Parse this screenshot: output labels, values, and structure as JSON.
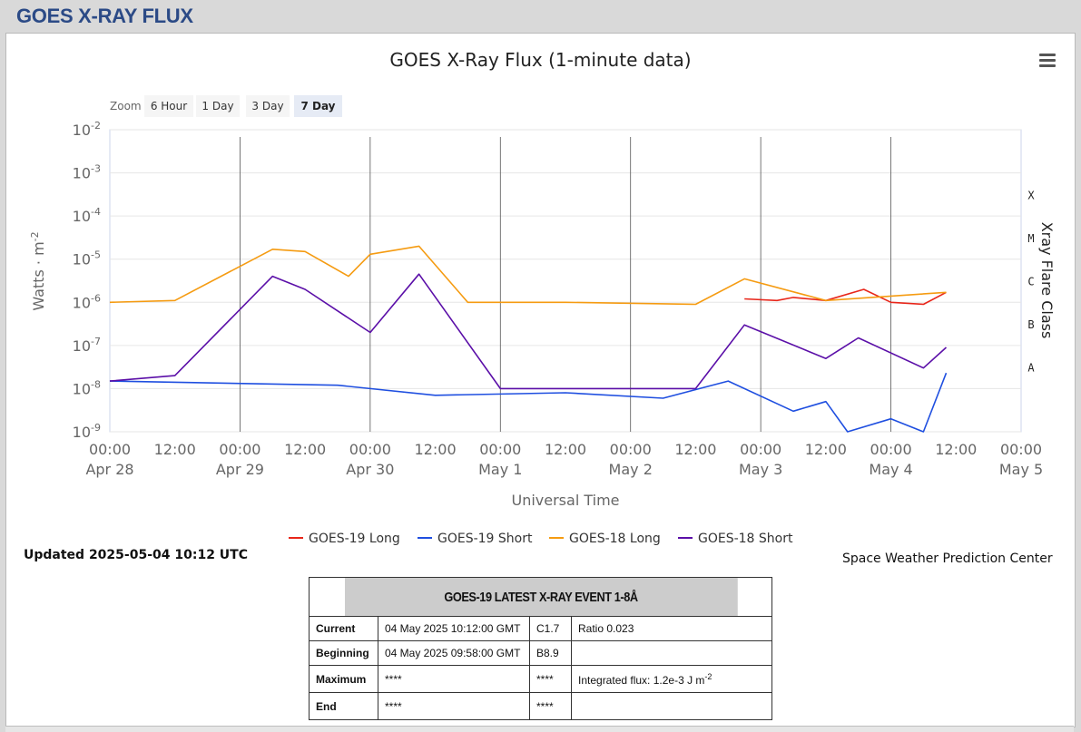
{
  "page": {
    "title": "GOES X-RAY FLUX"
  },
  "chart_data": {
    "type": "line",
    "title": "GOES X-Ray Flux (1-minute data)",
    "xlabel": "Universal Time",
    "ylabel": "Watts · m",
    "ylabel_sup": "-2",
    "y2label": "Xray Flare Class",
    "yscale": "log",
    "ylim": [
      1e-09,
      0.01
    ],
    "y_ticks": [
      {
        "base": "10",
        "exp": "-2"
      },
      {
        "base": "10",
        "exp": "-3"
      },
      {
        "base": "10",
        "exp": "-4"
      },
      {
        "base": "10",
        "exp": "-5"
      },
      {
        "base": "10",
        "exp": "-6"
      },
      {
        "base": "10",
        "exp": "-7"
      },
      {
        "base": "10",
        "exp": "-8"
      },
      {
        "base": "10",
        "exp": "-9"
      }
    ],
    "flare_classes": [
      {
        "label": "X",
        "value": 0.0001
      },
      {
        "label": "M",
        "value": 1e-05
      },
      {
        "label": "C",
        "value": 1e-06
      },
      {
        "label": "B",
        "value": 1e-07
      },
      {
        "label": "A",
        "value": 1e-08
      }
    ],
    "xlim": [
      "2025-04-28 00:00",
      "2025-05-05 00:00"
    ],
    "x_ticks": [
      {
        "time": "00:00",
        "date": "Apr 28"
      },
      {
        "time": "12:00",
        "date": ""
      },
      {
        "time": "00:00",
        "date": "Apr 29"
      },
      {
        "time": "12:00",
        "date": ""
      },
      {
        "time": "00:00",
        "date": "Apr 30"
      },
      {
        "time": "12:00",
        "date": ""
      },
      {
        "time": "00:00",
        "date": "May 1"
      },
      {
        "time": "12:00",
        "date": ""
      },
      {
        "time": "00:00",
        "date": "May 2"
      },
      {
        "time": "12:00",
        "date": ""
      },
      {
        "time": "00:00",
        "date": "May 3"
      },
      {
        "time": "12:00",
        "date": ""
      },
      {
        "time": "00:00",
        "date": "May 4"
      },
      {
        "time": "12:00",
        "date": ""
      },
      {
        "time": "00:00",
        "date": "May 5"
      }
    ],
    "series": [
      {
        "name": "GOES-19 Long",
        "color": "#e8261a",
        "points": [
          [
            "2025-05-02 21:00",
            1.2e-06
          ],
          [
            "2025-05-03 03:00",
            1.1e-06
          ],
          [
            "2025-05-03 06:00",
            1.3e-06
          ],
          [
            "2025-05-03 12:00",
            1.1e-06
          ],
          [
            "2025-05-03 19:00",
            2e-06
          ],
          [
            "2025-05-04 00:00",
            1e-06
          ],
          [
            "2025-05-04 06:00",
            9e-07
          ],
          [
            "2025-05-04 10:12",
            1.7e-06
          ]
        ]
      },
      {
        "name": "GOES-19 Short",
        "color": "#1f4fe0",
        "points": [
          [
            "2025-04-28 00:00",
            1.5e-08
          ],
          [
            "2025-04-29 18:00",
            1.2e-08
          ],
          [
            "2025-04-30 12:00",
            7e-09
          ],
          [
            "2025-05-01 12:00",
            8e-09
          ],
          [
            "2025-05-02 06:00",
            6e-09
          ],
          [
            "2025-05-02 18:00",
            1.5e-08
          ],
          [
            "2025-05-03 06:00",
            3e-09
          ],
          [
            "2025-05-03 12:00",
            5e-09
          ],
          [
            "2025-05-03 16:00",
            1e-09
          ],
          [
            "2025-05-04 00:00",
            2e-09
          ],
          [
            "2025-05-04 06:00",
            1e-09
          ],
          [
            "2025-05-04 10:12",
            2.3e-08
          ]
        ]
      },
      {
        "name": "GOES-18 Long",
        "color": "#f59b11",
        "points": [
          [
            "2025-04-28 00:00",
            1e-06
          ],
          [
            "2025-04-28 12:00",
            1.1e-06
          ],
          [
            "2025-04-29 06:00",
            1.7e-05
          ],
          [
            "2025-04-29 12:00",
            1.5e-05
          ],
          [
            "2025-04-29 20:00",
            4e-06
          ],
          [
            "2025-04-30 00:00",
            1.3e-05
          ],
          [
            "2025-04-30 09:00",
            2e-05
          ],
          [
            "2025-04-30 18:00",
            1e-06
          ],
          [
            "2025-05-01 12:00",
            1e-06
          ],
          [
            "2025-05-02 12:00",
            9e-07
          ],
          [
            "2025-05-02 21:00",
            3.5e-06
          ],
          [
            "2025-05-03 12:00",
            1.1e-06
          ],
          [
            "2025-05-04 10:12",
            1.7e-06
          ]
        ]
      },
      {
        "name": "GOES-18 Short",
        "color": "#5b0fa8",
        "points": [
          [
            "2025-04-28 00:00",
            1.5e-08
          ],
          [
            "2025-04-28 12:00",
            2e-08
          ],
          [
            "2025-04-29 06:00",
            4e-06
          ],
          [
            "2025-04-29 12:00",
            2e-06
          ],
          [
            "2025-04-30 00:00",
            2e-07
          ],
          [
            "2025-04-30 09:00",
            4.5e-06
          ],
          [
            "2025-05-01 00:00",
            1e-08
          ],
          [
            "2025-05-02 12:00",
            1e-08
          ],
          [
            "2025-05-02 21:00",
            3e-07
          ],
          [
            "2025-05-03 12:00",
            5e-08
          ],
          [
            "2025-05-03 18:00",
            1.5e-07
          ],
          [
            "2025-05-04 06:00",
            3e-08
          ],
          [
            "2025-05-04 10:12",
            9e-08
          ]
        ]
      }
    ],
    "legend_placement": "bottom"
  },
  "zoom": {
    "label": "Zoom",
    "options": [
      "6 Hour",
      "1 Day",
      "3 Day",
      "7 Day"
    ],
    "selected": "7 Day"
  },
  "updated": "Updated 2025-05-04 10:12 UTC",
  "credit": "Space Weather Prediction Center",
  "event_table": {
    "title": "GOES-19 LATEST X-RAY EVENT 1-8Å",
    "rows": [
      {
        "label": "Current",
        "time": "04 May 2025 10:12:00 GMT",
        "class": "C1.7",
        "extra": "Ratio 0.023"
      },
      {
        "label": "Beginning",
        "time": "04 May 2025 09:58:00 GMT",
        "class": "B8.9",
        "extra": ""
      },
      {
        "label": "Maximum",
        "time": "****",
        "class": "****",
        "extra": "Integrated flux: 1.2e-3 J m",
        "extra_sup": "-2"
      },
      {
        "label": "End",
        "time": "****",
        "class": "****",
        "extra": ""
      }
    ]
  }
}
